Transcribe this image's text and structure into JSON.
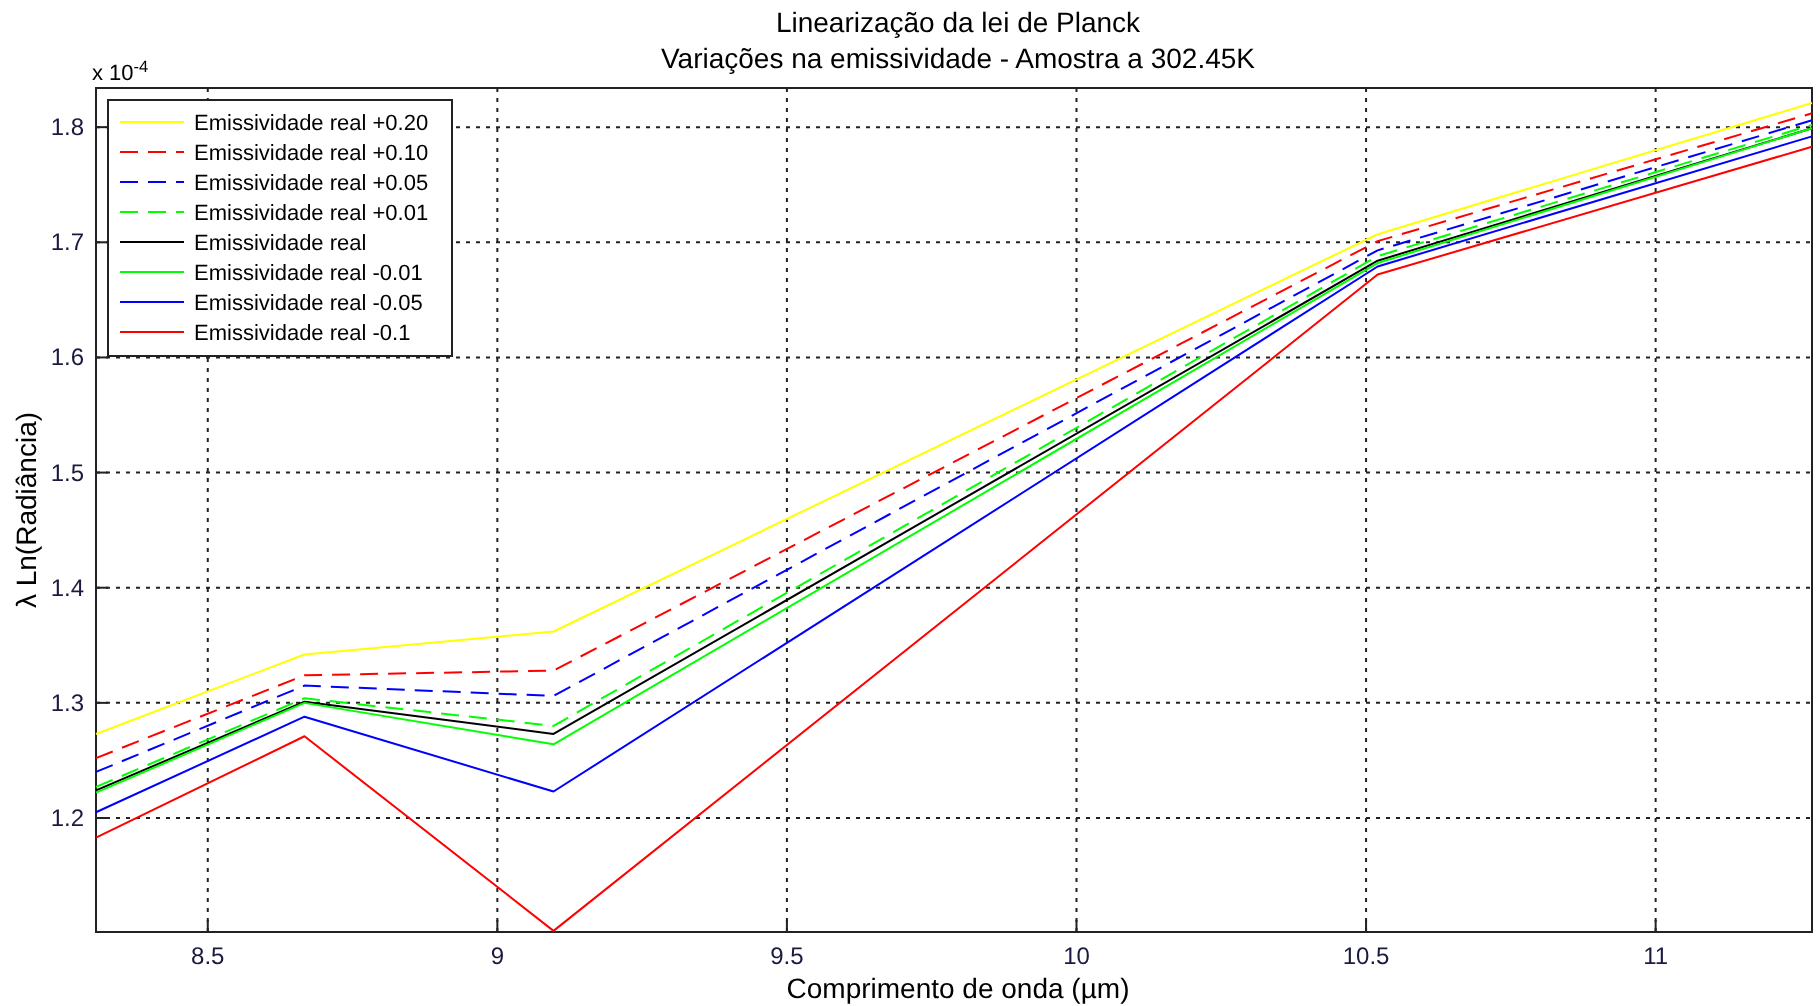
{
  "chart_data": {
    "type": "line",
    "title": "Linearização da lei de Planck",
    "subtitle": "Variações na emissividade - Amostra a 302.45K",
    "xlabel": "Comprimento de onda (µm)",
    "ylabel": "λ Ln(Radiância)",
    "annotations": [
      "x 10$^{-4}$"
    ],
    "x": [
      8.307,
      8.667,
      9.097,
      10.52,
      11.27
    ],
    "series": [
      {
        "name": "Emissividade real +0.20",
        "color": "#ffff00",
        "line_style": "solid",
        "values": [
          1.273,
          1.342,
          1.362,
          1.707,
          1.821
        ]
      },
      {
        "name": "Emissividade real +0.10",
        "color": "#ff0000",
        "line_style": "dashed",
        "values": [
          1.252,
          1.324,
          1.328,
          1.701,
          1.812
        ]
      },
      {
        "name": "Emissividade real +0.05",
        "color": "#0000ff",
        "line_style": "dashed",
        "values": [
          1.24,
          1.315,
          1.306,
          1.693,
          1.806
        ]
      },
      {
        "name": "Emissividade real +0.01",
        "color": "#00ff00",
        "line_style": "dashed",
        "values": [
          1.227,
          1.304,
          1.28,
          1.688,
          1.802
        ]
      },
      {
        "name": "Emissividade real",
        "color": "#000000",
        "line_style": "solid",
        "values": [
          1.224,
          1.301,
          1.273,
          1.684,
          1.799
        ]
      },
      {
        "name": "Emissividade real -0.01",
        "color": "#00ff00",
        "line_style": "solid",
        "values": [
          1.222,
          1.3,
          1.264,
          1.682,
          1.799
        ]
      },
      {
        "name": "Emissividade real -0.05",
        "color": "#0000ff",
        "line_style": "solid",
        "values": [
          1.205,
          1.288,
          1.223,
          1.679,
          1.792
        ]
      },
      {
        "name": "Emissividade real -0.1",
        "color": "#ff0000",
        "line_style": "solid",
        "values": [
          1.183,
          1.271,
          1.102,
          1.672,
          1.783
        ]
      }
    ],
    "xlim": [
      8.307,
      11.27
    ],
    "ylim": [
      1.101,
      1.834
    ],
    "xticks": [
      8.5,
      9,
      9.5,
      10,
      10.5,
      11
    ],
    "yticks": [
      1.2,
      1.3,
      1.4,
      1.5,
      1.6,
      1.7,
      1.8
    ],
    "grid": true,
    "legend": "top left",
    "marker": "none"
  }
}
